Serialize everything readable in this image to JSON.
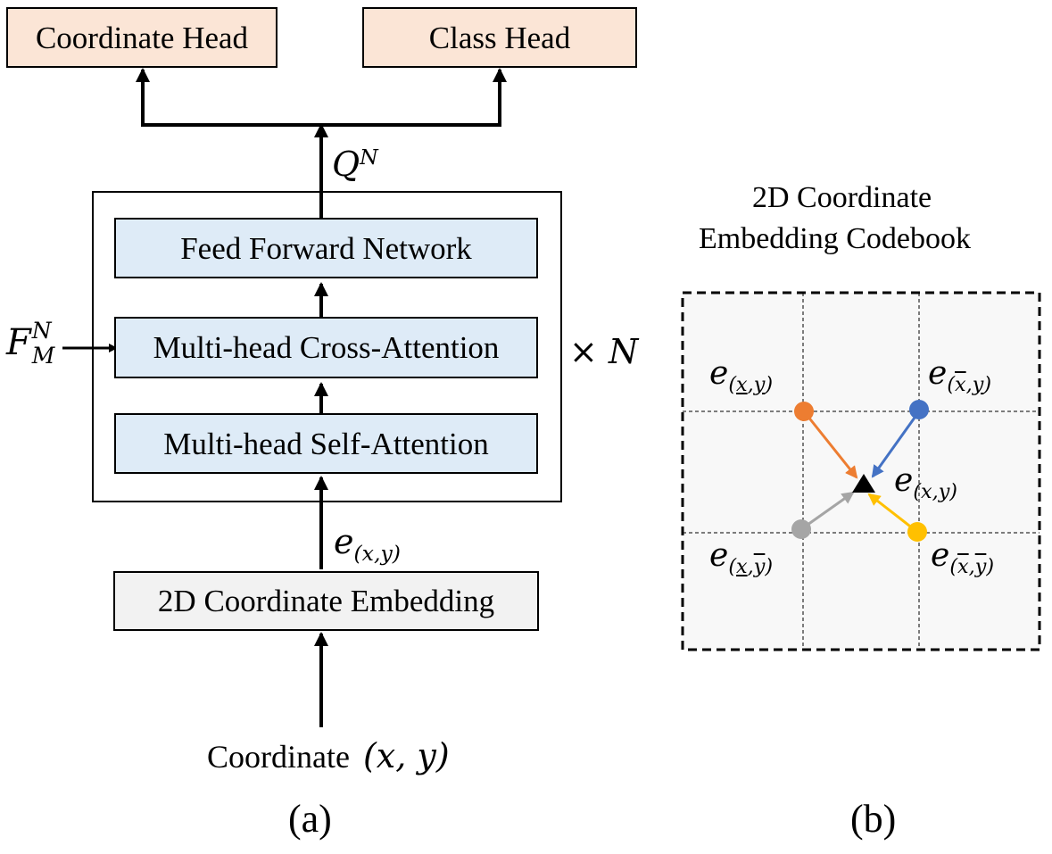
{
  "panel_a": {
    "heads": {
      "coordinate_head": "Coordinate Head",
      "class_head": "Class Head"
    },
    "query_output": {
      "base": "Q",
      "superscript": "N"
    },
    "layers": {
      "ffn": "Feed Forward Network",
      "cross_attention": "Multi-head Cross-Attention",
      "self_attention": "Multi-head Self-Attention"
    },
    "memory_input": {
      "base": "F",
      "superscript": "N",
      "subscript": "M"
    },
    "repeat": {
      "times": "×",
      "symbol": "N"
    },
    "embedding_output": {
      "base": "e",
      "subscript": "(x,y)"
    },
    "embedding_box": "2D Coordinate Embedding",
    "input": {
      "text": "Coordinate",
      "math": "(x, y)"
    },
    "caption": "(a)"
  },
  "panel_b": {
    "title_line1": "2D Coordinate",
    "title_line2": "Embedding Codebook",
    "corners": {
      "top_left": {
        "base": "e",
        "sub_x": "x",
        "sub_y": "y"
      },
      "top_right": {
        "base": "e",
        "sub_x": "x",
        "sub_y": "y"
      },
      "bottom_left": {
        "base": "e",
        "sub_x": "x",
        "sub_y": "y"
      },
      "bottom_right": {
        "base": "e",
        "sub_x": "x",
        "sub_y": "y"
      }
    },
    "center": {
      "base": "e",
      "subscript": "(x,y)"
    },
    "caption": "(b)",
    "colors": {
      "top_left": "#ed7d31",
      "top_right": "#4472c4",
      "bottom_left": "#a5a5a5",
      "bottom_right": "#ffc000",
      "grid_fill": "#f8f8f8"
    }
  }
}
